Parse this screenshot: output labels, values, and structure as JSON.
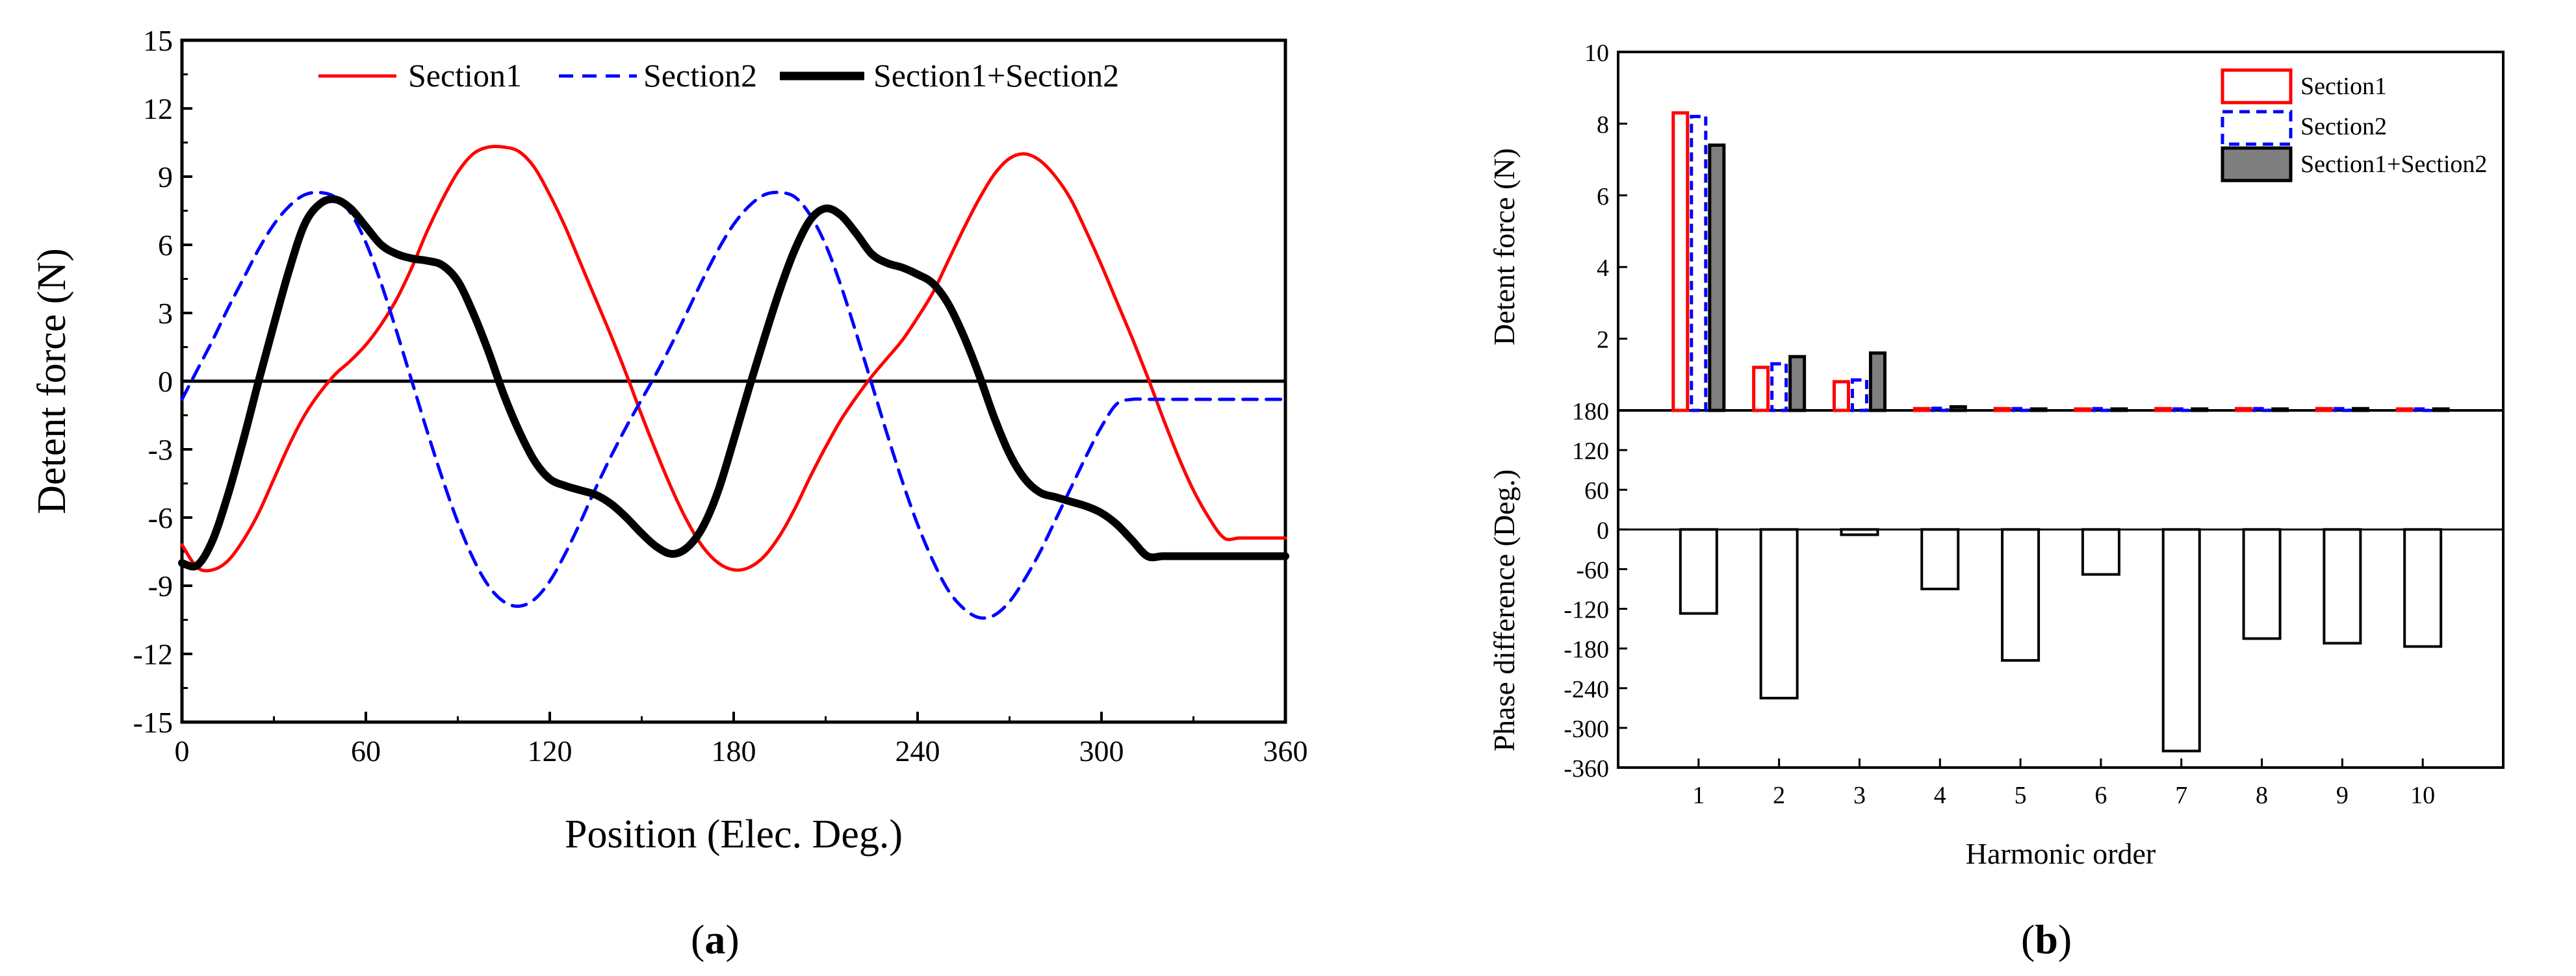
{
  "panel_labels": {
    "a": "a",
    "b": "b"
  },
  "chart_data": [
    {
      "id": "a",
      "type": "line",
      "xlabel": "Position (Elec. Deg.)",
      "ylabel": "Detent force (N)",
      "xlim": [
        0,
        360
      ],
      "ylim": [
        -15,
        15
      ],
      "xticks": [
        "0",
        "60",
        "120",
        "180",
        "240",
        "300",
        "360"
      ],
      "yticks": [
        "15",
        "12",
        "9",
        "6",
        "3",
        "0",
        "-3",
        "-6",
        "-9",
        "-12",
        "-15"
      ],
      "zero_line": true,
      "legend_position": "top",
      "series": [
        {
          "name": "Section1",
          "color": "#ff0000",
          "style": "solid",
          "x": [
            0,
            5,
            10,
            15,
            20,
            25,
            30,
            35,
            40,
            45,
            50,
            55,
            60,
            65,
            70,
            75,
            80,
            85,
            90,
            95,
            100,
            105,
            110,
            115,
            120,
            125,
            130,
            135,
            140,
            145,
            150,
            155,
            160,
            165,
            170,
            175,
            180,
            185,
            190,
            195,
            200,
            205,
            210,
            215,
            220,
            225,
            230,
            235,
            240,
            245,
            250,
            255,
            260,
            265,
            270,
            275,
            280,
            285,
            290,
            295,
            300,
            305,
            310,
            315,
            320,
            325,
            330,
            335,
            340,
            345,
            350,
            355,
            360
          ],
          "y": [
            -7.2,
            -8.2,
            -8.3,
            -7.9,
            -7,
            -5.8,
            -4.3,
            -2.8,
            -1.5,
            -0.5,
            0.3,
            0.9,
            1.6,
            2.5,
            3.6,
            5,
            6.6,
            8,
            9.2,
            10,
            10.3,
            10.3,
            10.1,
            9.4,
            8.2,
            6.8,
            5.2,
            3.6,
            2,
            0.3,
            -1.5,
            -3.2,
            -4.8,
            -6.2,
            -7.3,
            -8,
            -8.3,
            -8.2,
            -7.7,
            -6.8,
            -5.6,
            -4.2,
            -2.9,
            -1.7,
            -0.7,
            0.2,
            1,
            1.8,
            2.8,
            3.9,
            5.3,
            6.7,
            8,
            9.1,
            9.8,
            10,
            9.7,
            9,
            8,
            6.6,
            5.1,
            3.5,
            1.9,
            0.2,
            -1.6,
            -3.3,
            -4.8,
            -6,
            -6.9,
            -6.9,
            -6.9,
            -6.9,
            -6.9
          ]
        },
        {
          "name": "Section2",
          "color": "#0000ff",
          "style": "dashed",
          "x": [
            0,
            5,
            10,
            15,
            20,
            25,
            30,
            35,
            40,
            45,
            50,
            55,
            60,
            65,
            70,
            75,
            80,
            85,
            90,
            95,
            100,
            105,
            110,
            115,
            120,
            125,
            130,
            135,
            140,
            145,
            150,
            155,
            160,
            165,
            170,
            175,
            180,
            185,
            190,
            195,
            200,
            205,
            210,
            215,
            220,
            225,
            230,
            235,
            240,
            245,
            250,
            255,
            260,
            265,
            270,
            275,
            280,
            285,
            290,
            295,
            300,
            305,
            310,
            315,
            320,
            325,
            330,
            335,
            340,
            345,
            350,
            355,
            360
          ],
          "y": [
            -0.8,
            0.5,
            1.8,
            3.2,
            4.5,
            5.8,
            6.9,
            7.7,
            8.2,
            8.3,
            8.1,
            7.4,
            6.1,
            4.3,
            2.2,
            0,
            -2.2,
            -4.3,
            -6.2,
            -7.8,
            -9,
            -9.7,
            -9.9,
            -9.6,
            -8.8,
            -7.6,
            -6.2,
            -4.7,
            -3.3,
            -2,
            -0.8,
            0.4,
            1.7,
            3.1,
            4.5,
            5.8,
            6.9,
            7.7,
            8.2,
            8.3,
            8.1,
            7.3,
            6,
            4.2,
            2.1,
            -0.1,
            -2.3,
            -4.4,
            -6.3,
            -7.9,
            -9.2,
            -10,
            -10.4,
            -10.3,
            -9.7,
            -8.7,
            -7.5,
            -6.1,
            -4.7,
            -3.3,
            -2,
            -1,
            -0.8,
            -0.8,
            -0.8,
            -0.8,
            -0.8,
            -0.8,
            -0.8,
            -0.8,
            -0.8,
            -0.8,
            -0.8
          ]
        },
        {
          "name": "Section1+Section2",
          "color": "#000000",
          "style": "solid-thick",
          "x": [
            0,
            5,
            10,
            15,
            20,
            25,
            30,
            35,
            40,
            45,
            50,
            55,
            60,
            65,
            70,
            75,
            80,
            85,
            90,
            95,
            100,
            105,
            110,
            115,
            120,
            125,
            130,
            135,
            140,
            145,
            150,
            155,
            160,
            165,
            170,
            175,
            180,
            185,
            190,
            195,
            200,
            205,
            210,
            215,
            220,
            225,
            230,
            235,
            240,
            245,
            250,
            255,
            260,
            265,
            270,
            275,
            280,
            285,
            290,
            295,
            300,
            305,
            310,
            315,
            320,
            325,
            330,
            335,
            340,
            345,
            350,
            355,
            360
          ],
          "y": [
            -8,
            -8.1,
            -7,
            -5,
            -2.6,
            0,
            2.5,
            4.9,
            6.9,
            7.8,
            8,
            7.6,
            6.8,
            6,
            5.6,
            5.4,
            5.3,
            5.1,
            4.4,
            3,
            1.3,
            -0.6,
            -2.2,
            -3.5,
            -4.3,
            -4.6,
            -4.8,
            -5,
            -5.4,
            -6,
            -6.7,
            -7.3,
            -7.6,
            -7.3,
            -6.4,
            -4.8,
            -2.6,
            -0.3,
            1.9,
            4,
            5.8,
            7.1,
            7.6,
            7.3,
            6.5,
            5.6,
            5.2,
            5,
            4.7,
            4.3,
            3.4,
            2,
            0.3,
            -1.6,
            -3.2,
            -4.3,
            -4.9,
            -5.1,
            -5.3,
            -5.5,
            -5.8,
            -6.3,
            -7,
            -7.7,
            -7.7,
            -7.7,
            -7.7,
            -7.7,
            -7.7,
            -7.7,
            -7.7,
            -7.7,
            -7.7
          ]
        }
      ]
    },
    {
      "id": "b-top",
      "type": "bar",
      "ylabel": "Detent force (N)",
      "ylim": [
        0,
        10
      ],
      "yticks": [
        "10",
        "8",
        "6",
        "4",
        "2"
      ],
      "categories": [
        "1",
        "2",
        "3",
        "4",
        "5",
        "6",
        "7",
        "8",
        "9",
        "10"
      ],
      "legend_position": "top-right",
      "series": [
        {
          "name": "Section1",
          "edge": "#ff0000",
          "fill": "none",
          "dash": false,
          "values": [
            8.3,
            1.2,
            0.8,
            0.05,
            0.05,
            0.04,
            0.05,
            0.05,
            0.05,
            0.04
          ]
        },
        {
          "name": "Section2",
          "edge": "#0000ff",
          "fill": "none",
          "dash": true,
          "values": [
            8.2,
            1.3,
            0.85,
            0.06,
            0.05,
            0.05,
            0.04,
            0.05,
            0.05,
            0.04
          ]
        },
        {
          "name": "Section1+Section2",
          "edge": "#000000",
          "fill": "#7f7f7f",
          "dash": false,
          "values": [
            7.4,
            1.5,
            1.6,
            0.1,
            0.04,
            0.04,
            0.04,
            0.04,
            0.05,
            0.04
          ]
        }
      ]
    },
    {
      "id": "b-bottom",
      "type": "bar",
      "xlabel": "Harmonic order",
      "ylabel": "Phase difference (Deg.)",
      "ylim": [
        -360,
        180
      ],
      "yticks": [
        "180",
        "120",
        "60",
        "0",
        "-60",
        "-120",
        "-180",
        "-240",
        "-300",
        "-360"
      ],
      "categories": [
        "1",
        "2",
        "3",
        "4",
        "5",
        "6",
        "7",
        "8",
        "9",
        "10"
      ],
      "series": [
        {
          "name": "Phase difference",
          "edge": "#000000",
          "fill": "none",
          "values": [
            -127,
            -255,
            -8,
            -90,
            -198,
            -68,
            -335,
            -165,
            -172,
            -177
          ]
        }
      ]
    }
  ]
}
